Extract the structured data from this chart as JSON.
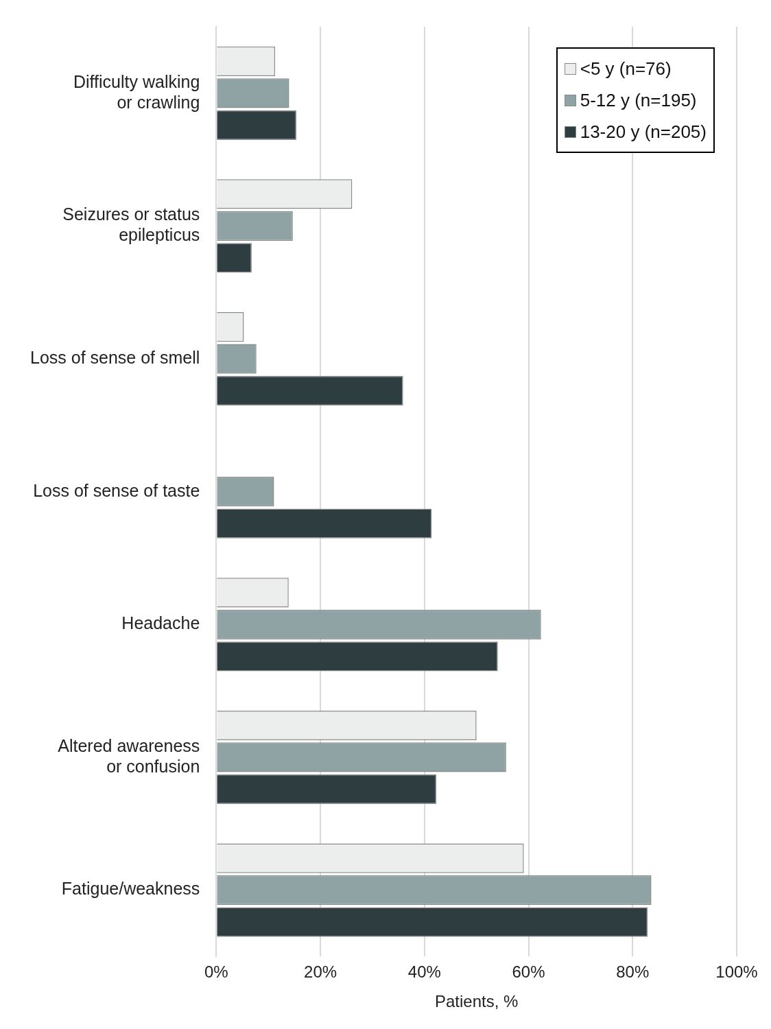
{
  "chart_data": {
    "type": "bar",
    "orientation": "horizontal",
    "xlabel": "Patients, %",
    "categories": [
      "Difficulty walking or crawling",
      "Seizures or status epilepticus",
      "Loss of sense of smell",
      "Loss of sense of taste",
      "Headache",
      "Altered awareness or confusion",
      "Fatigue/weakness"
    ],
    "series": [
      {
        "name": "<5 y (n=76)",
        "color": "#eceeee",
        "values": [
          11.3,
          26.1,
          5.3,
          0,
          13.9,
          50.0,
          59.1
        ]
      },
      {
        "name": "5-12 y (n=195)",
        "color": "#8fa3a5",
        "values": [
          14.0,
          14.7,
          7.7,
          11.1,
          62.4,
          55.7,
          83.6
        ]
      },
      {
        "name": "13-20 y (n=205)",
        "color": "#2d3d40",
        "values": [
          15.4,
          6.8,
          35.9,
          41.4,
          54.1,
          42.3,
          82.9
        ]
      }
    ],
    "xlim": [
      0,
      100
    ],
    "xticks": [
      {
        "value": 0,
        "label": "0%"
      },
      {
        "value": 20,
        "label": "20%"
      },
      {
        "value": 40,
        "label": "40%"
      },
      {
        "value": 60,
        "label": "60%"
      },
      {
        "value": 80,
        "label": "80%"
      },
      {
        "value": 100,
        "label": "100%"
      }
    ],
    "grid": "x",
    "legend": "top right"
  }
}
